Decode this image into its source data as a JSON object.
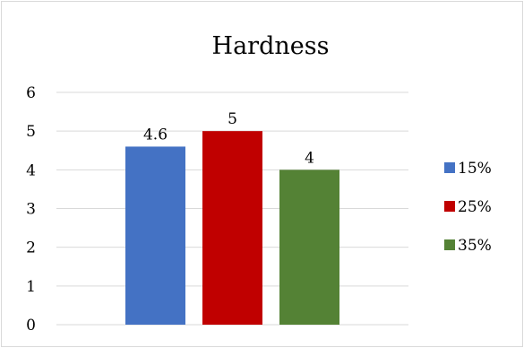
{
  "chart_data": {
    "type": "bar",
    "title": "Hardness",
    "categories": [
      ""
    ],
    "series": [
      {
        "name": "15%",
        "values": [
          4.6
        ],
        "color": "#4472c4",
        "data_label": "4.6"
      },
      {
        "name": "25%",
        "values": [
          5
        ],
        "color": "#c00000",
        "data_label": "5"
      },
      {
        "name": "35%",
        "values": [
          4
        ],
        "color": "#548235",
        "data_label": "4"
      }
    ],
    "ylim": [
      0,
      6
    ],
    "yticks": [
      "0",
      "1",
      "2",
      "3",
      "4",
      "5",
      "6"
    ],
    "grid": true,
    "legend_position": "right"
  }
}
